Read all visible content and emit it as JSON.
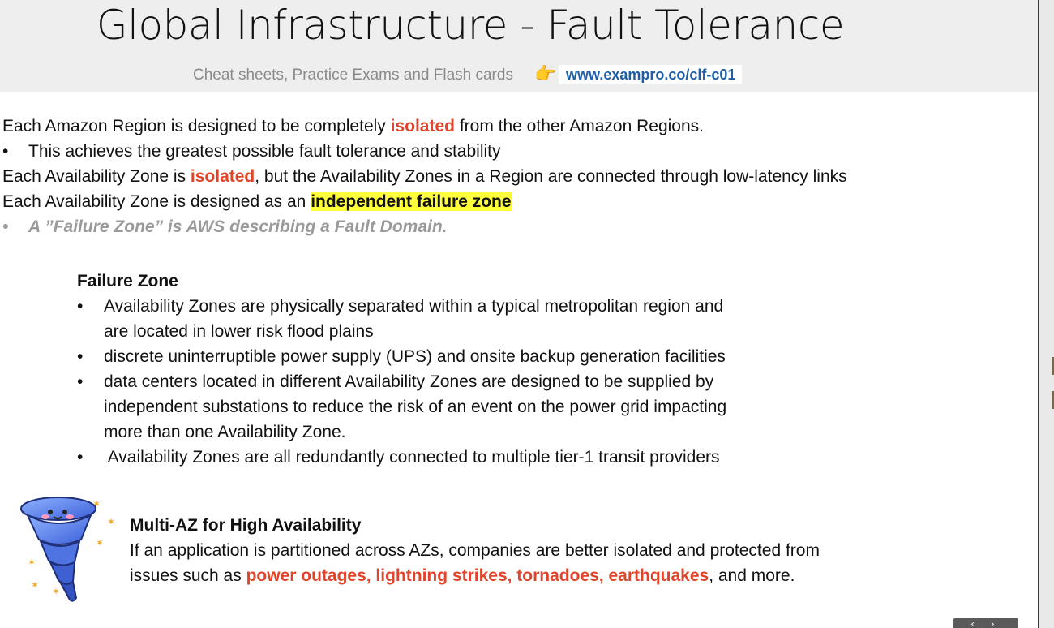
{
  "header": {
    "title": "Global Infrastructure - Fault Tolerance",
    "subtitle": "Cheat sheets, Practice Exams and Flash cards",
    "hand_icon": "👉",
    "link": "www.exampro.co/clf-c01"
  },
  "intro": {
    "l1_pre": "Each Amazon Region is designed to be completely ",
    "l1_em": "isolated",
    "l1_post": " from the other Amazon Regions.",
    "l2_bullet": "•",
    "l2": "This achieves the greatest possible fault tolerance and stability",
    "l3_pre": "Each Availability Zone is ",
    "l3_em": "isolated",
    "l3_post": ", but the Availability Zones in a Region are connected through low-latency links",
    "l4_pre": "Each Availability Zone is designed as an ",
    "l4_em": "independent failure zone",
    "l5_bullet": "•",
    "l5": "A ”Failure Zone” is AWS describing a Fault Domain."
  },
  "failure_zone": {
    "heading": "Failure Zone",
    "bullet": "•",
    "items": [
      "Availability Zones are physically separated within a typical metropolitan region and",
      "are located in lower risk flood plains",
      "discrete uninterruptible power supply (UPS) and onsite backup generation facilities",
      "data centers located in different Availability Zones are designed to be supplied by",
      "independent substations to reduce the risk of an event on the power grid impacting",
      "more than one Availability Zone.",
      " Availability Zones are all redundantly connected to multiple tier-1 transit providers"
    ]
  },
  "multi_az": {
    "heading": "Multi-AZ for High Availability",
    "l1": "If an application is partitioned across AZs, companies are better isolated and protected from",
    "l2_pre": "issues such as ",
    "l2_em": "power outages, lightning strikes, tornadoes, earthquakes",
    "l2_post": ", and more."
  },
  "icons": {
    "tornado": "tornado-icon",
    "nav": "slide-nav-arrows-icon"
  },
  "nav": {
    "arrows": "‹ ›"
  },
  "colors": {
    "accent_red": "#e0452b",
    "highlight": "#ffff3b",
    "link_blue": "#1f5fa8",
    "muted": "#9a9a9a"
  }
}
